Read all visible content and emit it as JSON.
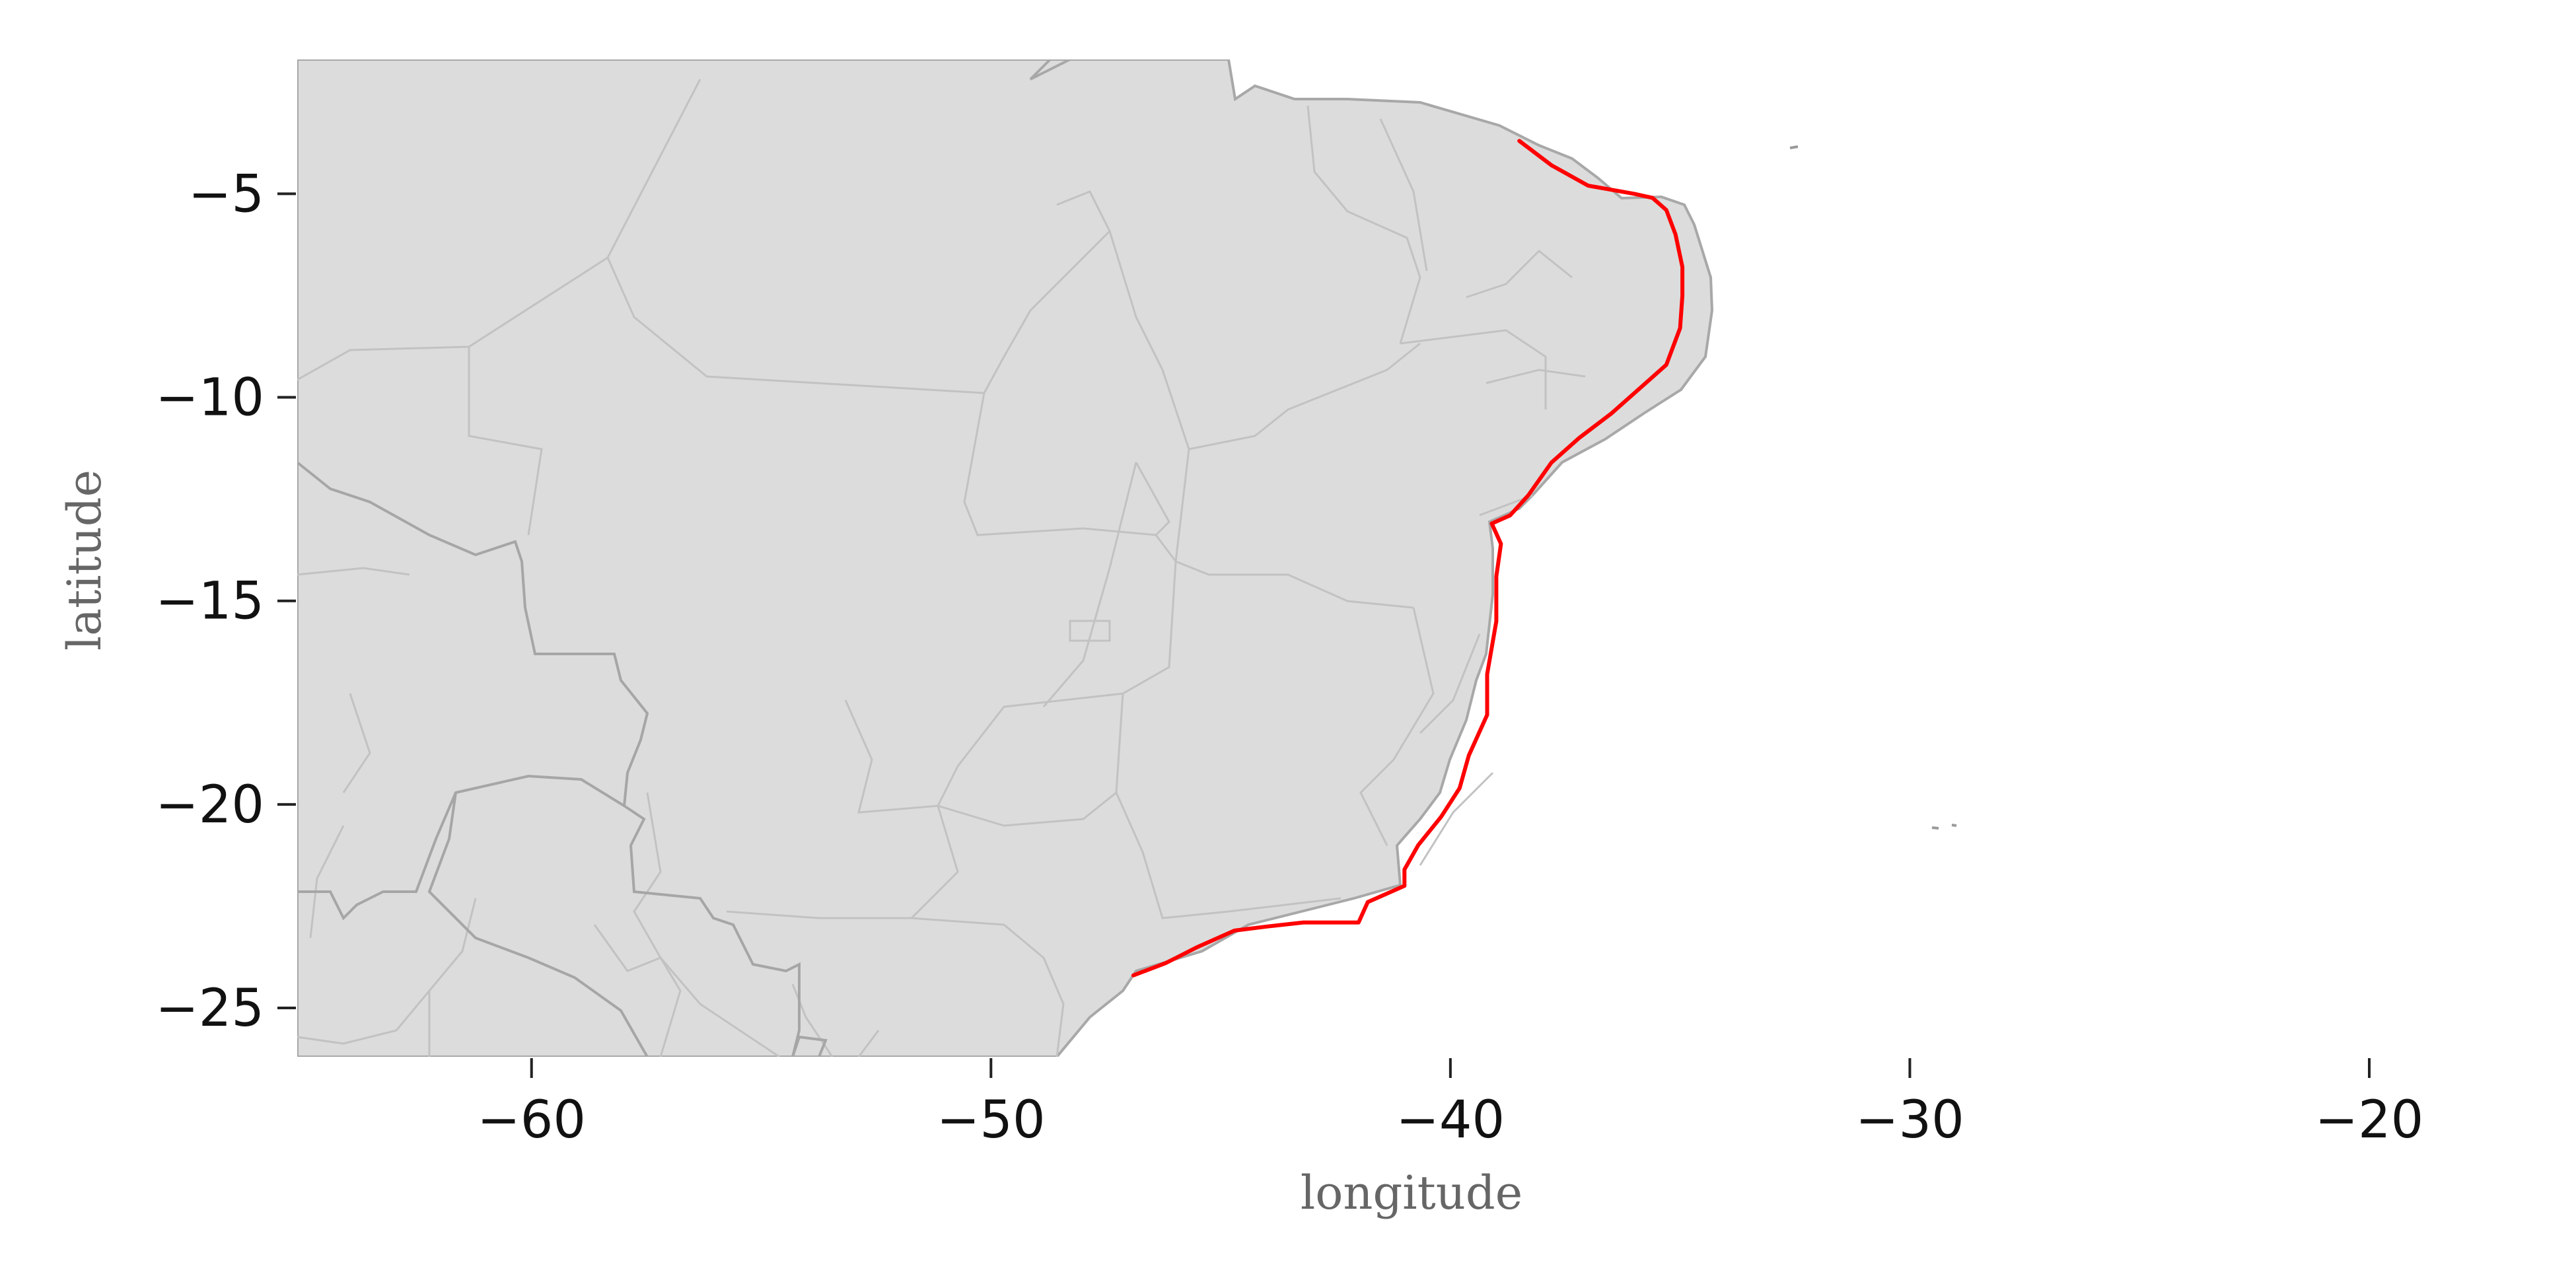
{
  "map": {
    "xlabel": "longitude",
    "ylabel": "latitude",
    "xlim": [
      -65.1,
      -15.5
    ],
    "ylim": [
      -26.2,
      -1.7
    ],
    "x_ticks": [
      -60,
      -50,
      -40,
      -30,
      -20
    ],
    "y_ticks": [
      -5,
      -10,
      -15,
      -20,
      -25
    ],
    "colors": {
      "land": "#dcdcdc",
      "country_border": "#a6a6a6",
      "state_border": "#c2c2c2",
      "highlighted_coast": "#ff0000",
      "tick": "#222222"
    },
    "highlighted_coastline": [
      [
        -38.5,
        -3.7
      ],
      [
        -37.8,
        -4.3
      ],
      [
        -37.0,
        -4.8
      ],
      [
        -36.0,
        -5.0
      ],
      [
        -35.6,
        -5.1
      ],
      [
        -35.3,
        -5.4
      ],
      [
        -35.1,
        -6.0
      ],
      [
        -34.95,
        -6.8
      ],
      [
        -34.95,
        -7.5
      ],
      [
        -35.0,
        -8.3
      ],
      [
        -35.3,
        -9.2
      ],
      [
        -35.8,
        -9.7
      ],
      [
        -36.5,
        -10.4
      ],
      [
        -37.2,
        -11.0
      ],
      [
        -37.8,
        -11.6
      ],
      [
        -38.3,
        -12.4
      ],
      [
        -38.7,
        -12.9
      ],
      [
        -39.1,
        -13.1
      ],
      [
        -38.9,
        -13.6
      ],
      [
        -39.0,
        -14.4
      ],
      [
        -39.0,
        -15.5
      ],
      [
        -39.2,
        -16.8
      ],
      [
        -39.2,
        -17.8
      ],
      [
        -39.6,
        -18.8
      ],
      [
        -39.8,
        -19.6
      ],
      [
        -40.2,
        -20.3
      ],
      [
        -40.7,
        -21.0
      ],
      [
        -41.0,
        -21.6
      ],
      [
        -41.0,
        -22.0
      ],
      [
        -41.8,
        -22.4
      ],
      [
        -42.0,
        -22.9
      ],
      [
        -43.2,
        -22.9
      ],
      [
        -44.0,
        -23.0
      ],
      [
        -44.7,
        -23.1
      ],
      [
        -45.5,
        -23.5
      ],
      [
        -46.2,
        -23.9
      ],
      [
        -46.9,
        -24.2
      ]
    ]
  }
}
